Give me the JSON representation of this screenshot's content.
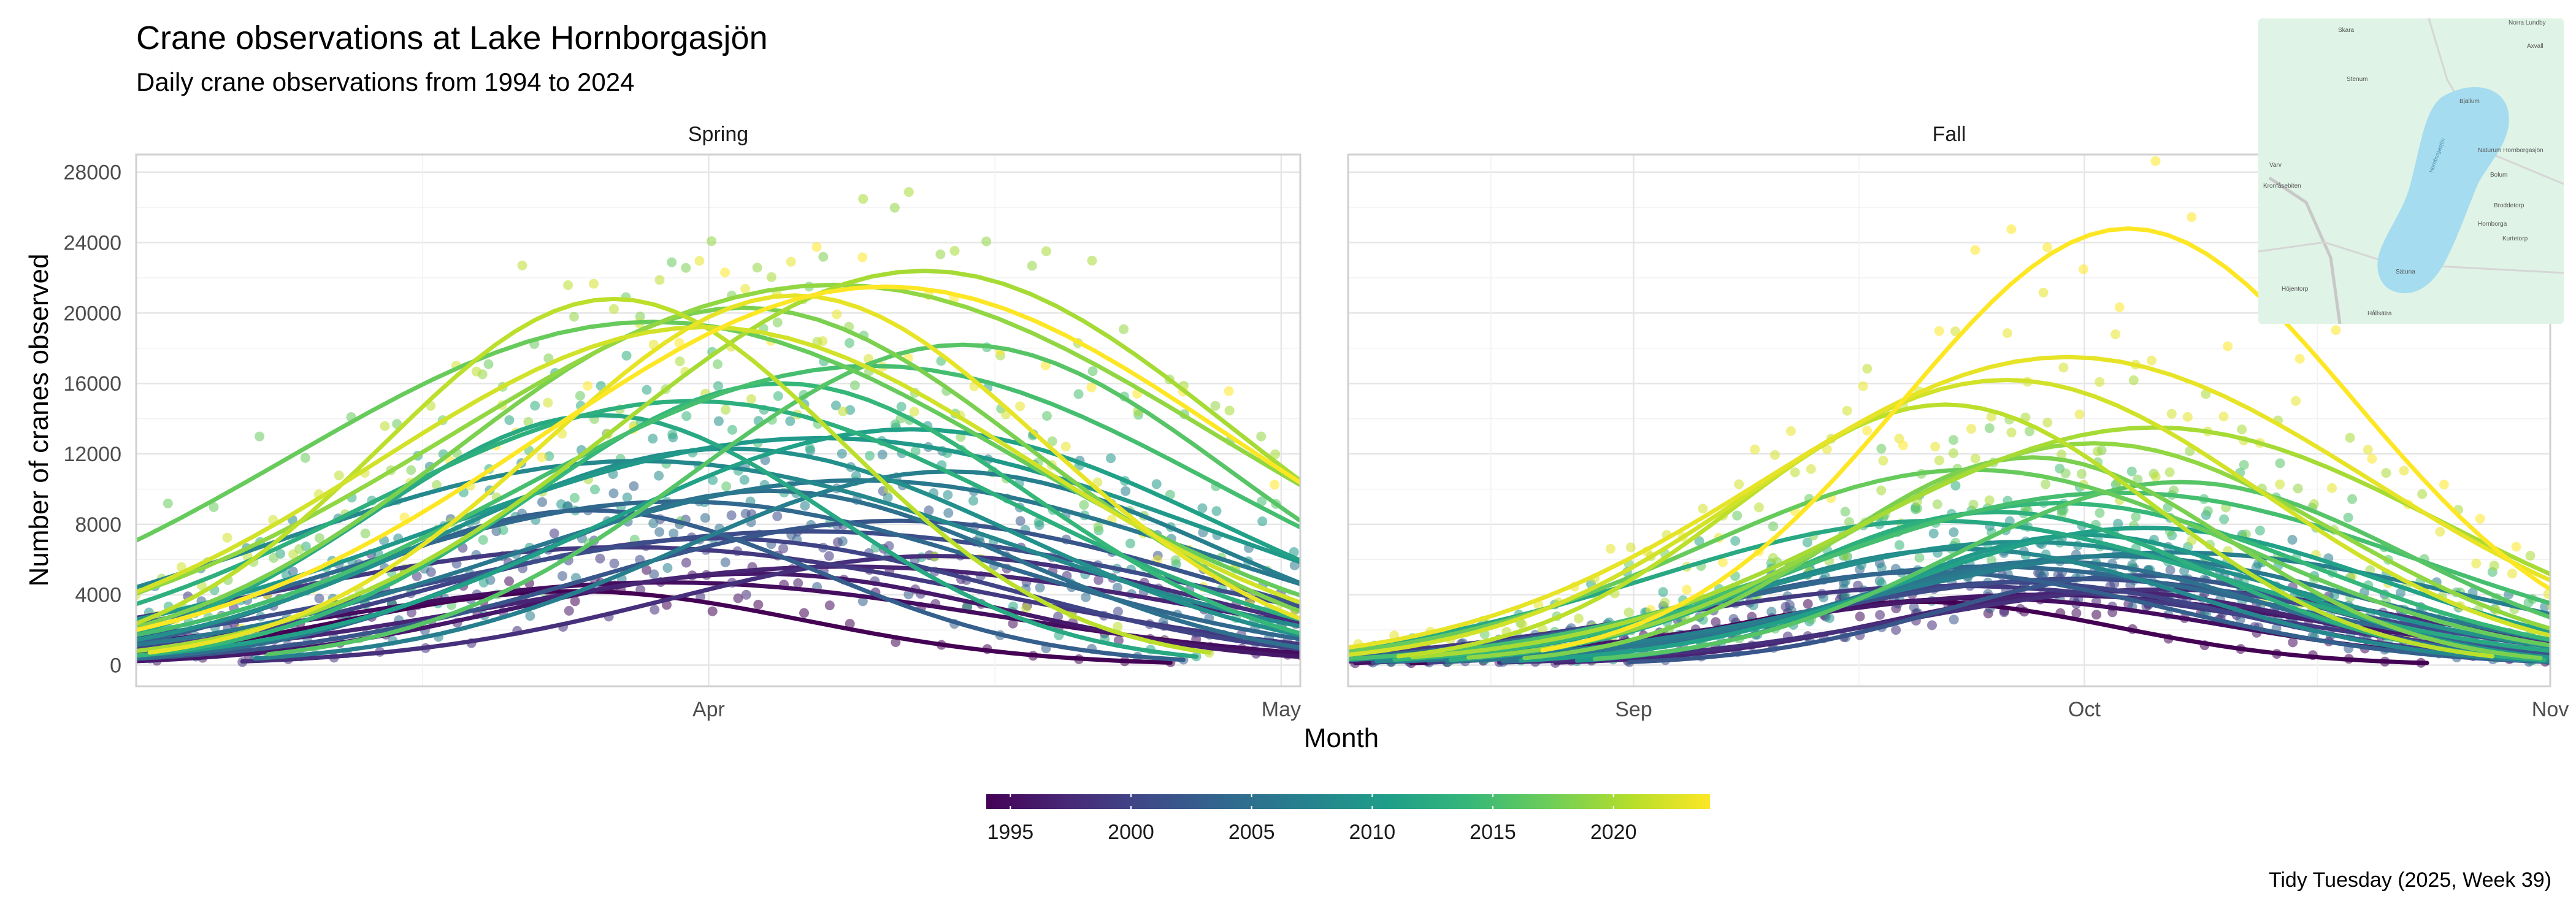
{
  "chart_data": {
    "type": "scatter",
    "title": "Crane observations at Lake Hornborgasjön",
    "subtitle": "Daily crane observations from 1994 to 2024",
    "xlabel": "Month",
    "ylabel": "Number of cranes observed",
    "caption": "Tidy Tuesday (2025, Week 39)",
    "ylim": [
      -1200,
      29000
    ],
    "yticks": [
      0,
      4000,
      8000,
      12000,
      16000,
      20000,
      24000,
      28000
    ],
    "grid": true,
    "legend": {
      "position": "bottom",
      "type": "colorbar",
      "ticks": [
        "1995",
        "2000",
        "2005",
        "2010",
        "2015",
        "2020"
      ],
      "range": [
        1994,
        2024
      ],
      "palette": [
        "#440154",
        "#482878",
        "#3e4a89",
        "#31688e",
        "#26828e",
        "#1f9e89",
        "#35b779",
        "#6dcd59",
        "#b4de2c",
        "#fde725"
      ]
    },
    "panels": [
      {
        "strip": "Spring",
        "x_type": "date",
        "xlim": [
          "2000-03-02",
          "2000-05-02"
        ],
        "xtick_labels": [
          "Apr",
          "May"
        ],
        "xtick_dates": [
          "2000-04-01",
          "2000-05-01"
        ],
        "peak_range": [
          "2000-03-25",
          "2000-04-15"
        ]
      },
      {
        "strip": "Fall",
        "x_type": "date",
        "xlim": [
          "2000-08-13",
          "2000-11-01"
        ],
        "xtick_labels": [
          "Sep",
          "Oct",
          "Nov"
        ],
        "xtick_dates": [
          "2000-09-01",
          "2000-10-01",
          "2000-11-01"
        ],
        "peak_range": [
          "2000-09-20",
          "2000-10-08"
        ]
      }
    ],
    "series": [
      {
        "year": 1994,
        "spring_peak": 4200,
        "fall_peak": 3600
      },
      {
        "year": 1995,
        "spring_peak": 4700,
        "fall_peak": 3800
      },
      {
        "year": 1996,
        "spring_peak": 5200,
        "fall_peak": 4000
      },
      {
        "year": 1997,
        "spring_peak": 5600,
        "fall_peak": 4200
      },
      {
        "year": 1998,
        "spring_peak": 6200,
        "fall_peak": 4300
      },
      {
        "year": 1999,
        "spring_peak": 6700,
        "fall_peak": 4500
      },
      {
        "year": 2000,
        "spring_peak": 7200,
        "fall_peak": 4700
      },
      {
        "year": 2001,
        "spring_peak": 7600,
        "fall_peak": 4900
      },
      {
        "year": 2002,
        "spring_peak": 8200,
        "fall_peak": 5100
      },
      {
        "year": 2003,
        "spring_peak": 8800,
        "fall_peak": 5300
      },
      {
        "year": 2004,
        "spring_peak": 9300,
        "fall_peak": 5600
      },
      {
        "year": 2005,
        "spring_peak": 9900,
        "fall_peak": 5900
      },
      {
        "year": 2006,
        "spring_peak": 10500,
        "fall_peak": 6200
      },
      {
        "year": 2007,
        "spring_peak": 11000,
        "fall_peak": 6400
      },
      {
        "year": 2008,
        "spring_peak": 11600,
        "fall_peak": 6600
      },
      {
        "year": 2009,
        "spring_peak": 12300,
        "fall_peak": 7000
      },
      {
        "year": 2010,
        "spring_peak": 12900,
        "fall_peak": 7400
      },
      {
        "year": 2011,
        "spring_peak": 13400,
        "fall_peak": 7800
      },
      {
        "year": 2012,
        "spring_peak": 14200,
        "fall_peak": 8200
      },
      {
        "year": 2013,
        "spring_peak": 15000,
        "fall_peak": 8700
      },
      {
        "year": 2014,
        "spring_peak": 16000,
        "fall_peak": 9200
      },
      {
        "year": 2015,
        "spring_peak": 17000,
        "fall_peak": 9800
      },
      {
        "year": 2016,
        "spring_peak": 18200,
        "fall_peak": 10400
      },
      {
        "year": 2017,
        "spring_peak": 19500,
        "fall_peak": 11100
      },
      {
        "year": 2018,
        "spring_peak": 20300,
        "fall_peak": 11800
      },
      {
        "year": 2019,
        "spring_peak": 21600,
        "fall_peak": 12600
      },
      {
        "year": 2020,
        "spring_peak": 22400,
        "fall_peak": 13500
      },
      {
        "year": 2021,
        "spring_peak": 20800,
        "fall_peak": 14800
      },
      {
        "year": 2022,
        "spring_peak": 19200,
        "fall_peak": 16200
      },
      {
        "year": 2023,
        "spring_peak": 21000,
        "fall_peak": 17500
      },
      {
        "year": 2024,
        "spring_peak": 21500,
        "fall_peak": 24800
      }
    ]
  },
  "map": {
    "place_labels": [
      "Skara",
      "Norra Lundby",
      "Axvall",
      "Stenum",
      "Bjällum",
      "Naturum Hornborgasjön",
      "Bolum",
      "Broddetorp",
      "Kurtetorp",
      "Hornborga",
      "Kronfåsebiten",
      "Sätuna",
      "Varv",
      "Höjentorp",
      "Hållsätra",
      "Hornborgasjön"
    ],
    "lake_color": "#a5dcef",
    "land_color": "#dff3e6",
    "icon": "map-inset"
  }
}
